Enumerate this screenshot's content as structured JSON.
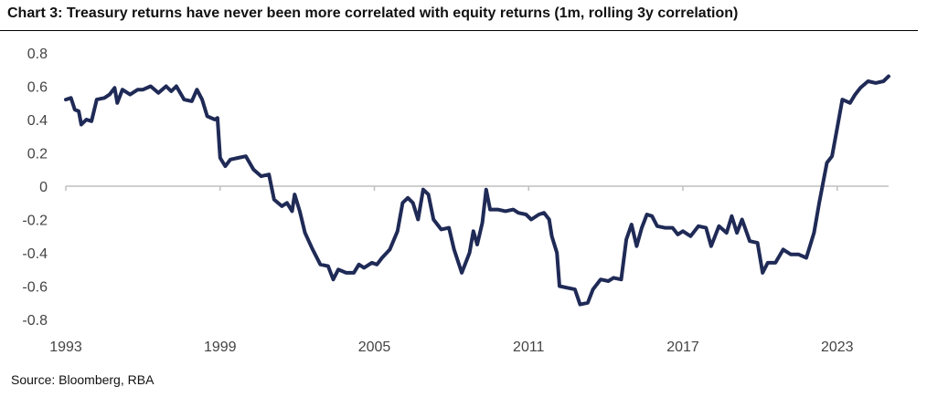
{
  "header": {
    "title": "Chart 3: Treasury returns have never been more correlated with equity returns (1m, rolling 3y correlation)"
  },
  "footer": {
    "source": "Source: Bloomberg, RBA"
  },
  "colors": {
    "line": "#1f2a56",
    "axis": "#bfbfbf",
    "text": "#444444"
  },
  "chart_data": {
    "type": "line",
    "title": "Chart 3: Treasury returns have never been more correlated with equity returns (1m, rolling 3y correlation)",
    "xlabel": "",
    "ylabel": "",
    "xlim": [
      1993,
      2025
    ],
    "ylim": [
      -0.8,
      0.8
    ],
    "grid": false,
    "legend": "none",
    "x_ticks": [
      1993,
      1999,
      2005,
      2011,
      2017,
      2023
    ],
    "x_tick_labels": [
      "1993",
      "1999",
      "2005",
      "2011",
      "2017",
      "2023"
    ],
    "y_ticks": [
      0.8,
      0.6,
      0.4,
      0.2,
      0,
      -0.2,
      -0.4,
      -0.6,
      -0.8
    ],
    "y_tick_labels": [
      "0.8",
      "0.6",
      "0.4",
      "0.2",
      "0",
      "-0.2",
      "-0.4",
      "-0.6",
      "-0.8"
    ],
    "series": [
      {
        "points": [
          [
            1993.0,
            0.52
          ],
          [
            1993.2,
            0.53
          ],
          [
            1993.35,
            0.46
          ],
          [
            1993.5,
            0.45
          ],
          [
            1993.6,
            0.37
          ],
          [
            1993.8,
            0.4
          ],
          [
            1994.0,
            0.39
          ],
          [
            1994.2,
            0.52
          ],
          [
            1994.5,
            0.53
          ],
          [
            1994.7,
            0.55
          ],
          [
            1994.9,
            0.59
          ],
          [
            1995.0,
            0.5
          ],
          [
            1995.2,
            0.58
          ],
          [
            1995.5,
            0.55
          ],
          [
            1995.8,
            0.58
          ],
          [
            1996.0,
            0.58
          ],
          [
            1996.3,
            0.6
          ],
          [
            1996.6,
            0.56
          ],
          [
            1996.9,
            0.6
          ],
          [
            1997.1,
            0.57
          ],
          [
            1997.3,
            0.6
          ],
          [
            1997.6,
            0.52
          ],
          [
            1997.9,
            0.51
          ],
          [
            1998.1,
            0.58
          ],
          [
            1998.3,
            0.52
          ],
          [
            1998.5,
            0.42
          ],
          [
            1998.8,
            0.4
          ],
          [
            1998.9,
            0.41
          ],
          [
            1999.0,
            0.17
          ],
          [
            1999.2,
            0.12
          ],
          [
            1999.4,
            0.16
          ],
          [
            1999.7,
            0.17
          ],
          [
            2000.0,
            0.18
          ],
          [
            2000.3,
            0.1
          ],
          [
            2000.6,
            0.06
          ],
          [
            2000.9,
            0.07
          ],
          [
            2001.1,
            -0.08
          ],
          [
            2001.4,
            -0.12
          ],
          [
            2001.6,
            -0.1
          ],
          [
            2001.8,
            -0.15
          ],
          [
            2001.9,
            -0.05
          ],
          [
            2002.1,
            -0.15
          ],
          [
            2002.3,
            -0.28
          ],
          [
            2002.6,
            -0.38
          ],
          [
            2002.9,
            -0.47
          ],
          [
            2003.2,
            -0.48
          ],
          [
            2003.4,
            -0.56
          ],
          [
            2003.6,
            -0.5
          ],
          [
            2003.9,
            -0.52
          ],
          [
            2004.2,
            -0.52
          ],
          [
            2004.4,
            -0.47
          ],
          [
            2004.6,
            -0.49
          ],
          [
            2004.9,
            -0.46
          ],
          [
            2005.1,
            -0.47
          ],
          [
            2005.3,
            -0.43
          ],
          [
            2005.6,
            -0.38
          ],
          [
            2005.9,
            -0.27
          ],
          [
            2006.1,
            -0.1
          ],
          [
            2006.3,
            -0.07
          ],
          [
            2006.5,
            -0.1
          ],
          [
            2006.7,
            -0.2
          ],
          [
            2006.9,
            -0.02
          ],
          [
            2007.1,
            -0.05
          ],
          [
            2007.3,
            -0.2
          ],
          [
            2007.6,
            -0.26
          ],
          [
            2007.9,
            -0.25
          ],
          [
            2008.1,
            -0.38
          ],
          [
            2008.4,
            -0.52
          ],
          [
            2008.7,
            -0.4
          ],
          [
            2008.85,
            -0.27
          ],
          [
            2009.0,
            -0.35
          ],
          [
            2009.2,
            -0.22
          ],
          [
            2009.35,
            -0.02
          ],
          [
            2009.5,
            -0.14
          ],
          [
            2009.8,
            -0.14
          ],
          [
            2010.1,
            -0.15
          ],
          [
            2010.4,
            -0.14
          ],
          [
            2010.6,
            -0.16
          ],
          [
            2010.9,
            -0.17
          ],
          [
            2011.1,
            -0.2
          ],
          [
            2011.4,
            -0.17
          ],
          [
            2011.6,
            -0.16
          ],
          [
            2011.8,
            -0.2
          ],
          [
            2011.9,
            -0.3
          ],
          [
            2012.1,
            -0.4
          ],
          [
            2012.2,
            -0.6
          ],
          [
            2012.5,
            -0.61
          ],
          [
            2012.8,
            -0.62
          ],
          [
            2013.0,
            -0.71
          ],
          [
            2013.3,
            -0.7
          ],
          [
            2013.5,
            -0.62
          ],
          [
            2013.8,
            -0.56
          ],
          [
            2014.1,
            -0.57
          ],
          [
            2014.3,
            -0.55
          ],
          [
            2014.6,
            -0.56
          ],
          [
            2014.8,
            -0.32
          ],
          [
            2015.0,
            -0.23
          ],
          [
            2015.2,
            -0.36
          ],
          [
            2015.4,
            -0.25
          ],
          [
            2015.6,
            -0.17
          ],
          [
            2015.8,
            -0.18
          ],
          [
            2016.0,
            -0.24
          ],
          [
            2016.3,
            -0.25
          ],
          [
            2016.6,
            -0.25
          ],
          [
            2016.8,
            -0.29
          ],
          [
            2017.0,
            -0.27
          ],
          [
            2017.3,
            -0.3
          ],
          [
            2017.6,
            -0.24
          ],
          [
            2017.9,
            -0.25
          ],
          [
            2018.1,
            -0.36
          ],
          [
            2018.4,
            -0.24
          ],
          [
            2018.7,
            -0.28
          ],
          [
            2018.9,
            -0.18
          ],
          [
            2019.1,
            -0.28
          ],
          [
            2019.3,
            -0.2
          ],
          [
            2019.6,
            -0.33
          ],
          [
            2019.9,
            -0.34
          ],
          [
            2020.1,
            -0.52
          ],
          [
            2020.3,
            -0.46
          ],
          [
            2020.6,
            -0.46
          ],
          [
            2020.9,
            -0.38
          ],
          [
            2021.2,
            -0.41
          ],
          [
            2021.5,
            -0.41
          ],
          [
            2021.8,
            -0.43
          ],
          [
            2022.1,
            -0.28
          ],
          [
            2022.3,
            -0.1
          ],
          [
            2022.6,
            0.14
          ],
          [
            2022.8,
            0.18
          ],
          [
            2023.0,
            0.35
          ],
          [
            2023.2,
            0.52
          ],
          [
            2023.5,
            0.5
          ],
          [
            2023.7,
            0.55
          ],
          [
            2023.9,
            0.59
          ],
          [
            2024.2,
            0.63
          ],
          [
            2024.5,
            0.62
          ],
          [
            2024.8,
            0.63
          ],
          [
            2025.0,
            0.66
          ]
        ]
      }
    ]
  }
}
